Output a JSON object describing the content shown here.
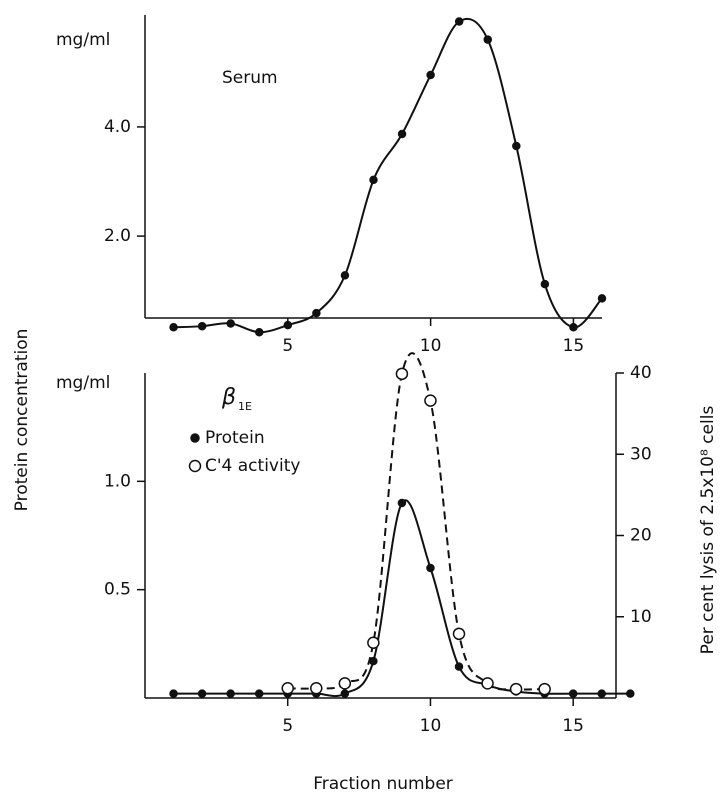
{
  "chart_data": [
    {
      "type": "line",
      "annotation": "Serum",
      "y_unit": "mg/ml",
      "ylabel": "Protein concentration",
      "xlim": [
        0,
        16
      ],
      "xticks": [
        5,
        10,
        15
      ],
      "ylim": [
        0.5,
        6.05
      ],
      "yticks": [
        {
          "value": 2,
          "label": "2.0"
        },
        {
          "value": 4,
          "label": "4.0"
        }
      ],
      "series": [
        {
          "name": "Serum protein",
          "color": "#111111",
          "marker": "filled",
          "dashed": false,
          "x": [
            1,
            2,
            3,
            4,
            5,
            6,
            7,
            8,
            9,
            10,
            11,
            12,
            13,
            14,
            15,
            16
          ],
          "values": [
            0.33,
            0.35,
            0.4,
            0.24,
            0.37,
            0.59,
            1.28,
            3.03,
            3.87,
            4.95,
            5.93,
            5.6,
            3.65,
            1.12,
            0.33,
            0.86
          ]
        }
      ]
    },
    {
      "type": "line",
      "annotation": "β",
      "annotation_sub": "1E",
      "y_unit": "mg/ml",
      "xlabel": "Fraction number",
      "y2label": "Per cent lysis of 2.5x10⁸ cells",
      "xlim": [
        0,
        16.5
      ],
      "xticks": [
        5,
        10,
        15
      ],
      "ylim": [
        0,
        1.5
      ],
      "yticks": [
        {
          "value": 0.5,
          "label": "0.5"
        },
        {
          "value": 1,
          "label": "1.0"
        }
      ],
      "y2lim": [
        0,
        40
      ],
      "y2ticks": [
        10,
        20,
        30,
        40
      ],
      "legend": "upper-left",
      "series": [
        {
          "name": "Protein",
          "color": "#111111",
          "marker": "filled",
          "dashed": false,
          "x": [
            1,
            2,
            3,
            4,
            5,
            6,
            7,
            8,
            9,
            10,
            11,
            12,
            13,
            14,
            15,
            16,
            17
          ],
          "values": [
            0.02,
            0.02,
            0.02,
            0.02,
            0.02,
            0.02,
            0.02,
            0.17,
            0.9,
            0.6,
            0.145,
            0.06,
            0.03,
            0.02,
            0.02,
            0.02,
            0.02
          ]
        },
        {
          "name": "C'4 activity",
          "color": "#111111",
          "marker": "open",
          "dashed": true,
          "axis": "y2",
          "x": [
            5,
            6,
            7,
            8,
            9,
            10,
            11,
            12,
            13,
            14
          ],
          "values": [
            1.2,
            1.2,
            1.8,
            6.8,
            39.9,
            36.6,
            7.9,
            1.8,
            1.1,
            1.1
          ]
        }
      ]
    }
  ]
}
